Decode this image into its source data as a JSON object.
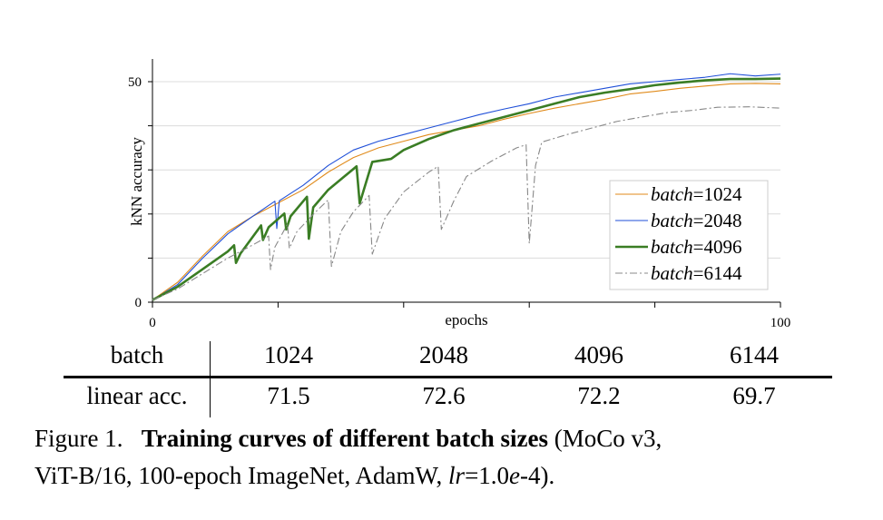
{
  "chart_data": {
    "type": "line",
    "xlabel": "epochs",
    "ylabel": "kNN accuracy",
    "xlim": [
      0,
      100
    ],
    "ylim": [
      0,
      55
    ],
    "x_ticks": [
      0,
      20,
      40,
      60,
      80,
      100
    ],
    "x_tick_labels": [
      "0",
      "100"
    ],
    "y_ticks": [
      0,
      10,
      20,
      30,
      40,
      50
    ],
    "y_tick_labels": [
      "0",
      "50"
    ],
    "grid": "horizontal",
    "legend_position": "bottom-right",
    "series": [
      {
        "name": "batch=1024",
        "name_italic": "batch",
        "name_value": "=1024",
        "color": "#e08a1a",
        "style": "solid-thin",
        "points": [
          [
            0,
            0.5
          ],
          [
            4,
            4.5
          ],
          [
            8,
            10.5
          ],
          [
            12,
            16
          ],
          [
            16,
            19.5
          ],
          [
            20,
            22.5
          ],
          [
            24,
            25.5
          ],
          [
            28,
            29.5
          ],
          [
            32,
            32.8
          ],
          [
            36,
            35
          ],
          [
            40,
            36.5
          ],
          [
            44,
            38
          ],
          [
            48,
            39
          ],
          [
            52,
            40
          ],
          [
            56,
            41.5
          ],
          [
            60,
            42.8
          ],
          [
            64,
            44
          ],
          [
            68,
            45
          ],
          [
            72,
            46
          ],
          [
            76,
            47.2
          ],
          [
            80,
            47.8
          ],
          [
            84,
            48.5
          ],
          [
            88,
            49
          ],
          [
            92,
            49.5
          ],
          [
            96,
            49.6
          ],
          [
            100,
            49.5
          ]
        ]
      },
      {
        "name": "batch=2048",
        "name_italic": "batch",
        "name_value": "=2048",
        "color": "#1f4fd8",
        "style": "solid-thin",
        "points": [
          [
            0,
            0.5
          ],
          [
            4,
            4
          ],
          [
            8,
            10
          ],
          [
            12,
            15.5
          ],
          [
            16,
            19.5
          ],
          [
            19.5,
            22.9
          ],
          [
            19.8,
            16.7
          ],
          [
            20.2,
            23
          ],
          [
            24,
            26.5
          ],
          [
            28,
            31
          ],
          [
            32,
            34.5
          ],
          [
            36,
            36.5
          ],
          [
            40,
            38
          ],
          [
            44,
            39.5
          ],
          [
            48,
            41
          ],
          [
            52,
            42.5
          ],
          [
            56,
            43.8
          ],
          [
            60,
            45
          ],
          [
            64,
            46.5
          ],
          [
            68,
            47.5
          ],
          [
            72,
            48.5
          ],
          [
            76,
            49.5
          ],
          [
            80,
            50
          ],
          [
            84,
            50.5
          ],
          [
            88,
            51
          ],
          [
            92,
            51.8
          ],
          [
            96,
            51.3
          ],
          [
            100,
            51.7
          ]
        ]
      },
      {
        "name": "batch=4096",
        "name_italic": "batch",
        "name_value": "=4096",
        "color": "#3a7d24",
        "style": "solid-thick",
        "points": [
          [
            0,
            0.5
          ],
          [
            4,
            3.5
          ],
          [
            8,
            7.5
          ],
          [
            12,
            11.5
          ],
          [
            13,
            12.9
          ],
          [
            13.3,
            8.9
          ],
          [
            14,
            11
          ],
          [
            17.3,
            17.4
          ],
          [
            17.6,
            14.1
          ],
          [
            18.5,
            17
          ],
          [
            21,
            20.1
          ],
          [
            21.3,
            16.5
          ],
          [
            22,
            19.5
          ],
          [
            24.6,
            23.9
          ],
          [
            24.9,
            14.4
          ],
          [
            25.6,
            21.5
          ],
          [
            28,
            25.5
          ],
          [
            32.5,
            30.8
          ],
          [
            33,
            22.4
          ],
          [
            35,
            31.8
          ],
          [
            38,
            32.5
          ],
          [
            40,
            34.5
          ],
          [
            44,
            37
          ],
          [
            48,
            39
          ],
          [
            52,
            40.5
          ],
          [
            56,
            42
          ],
          [
            60,
            43.5
          ],
          [
            64,
            45
          ],
          [
            68,
            46.5
          ],
          [
            72,
            47.5
          ],
          [
            76,
            48.3
          ],
          [
            80,
            49.2
          ],
          [
            84,
            49.8
          ],
          [
            88,
            50.3
          ],
          [
            92,
            50.6
          ],
          [
            96,
            50.6
          ],
          [
            100,
            50.7
          ]
        ]
      },
      {
        "name": "batch=6144",
        "name_italic": "batch",
        "name_value": "=6144",
        "color": "#888888",
        "style": "dash-dot",
        "points": [
          [
            0,
            0.5
          ],
          [
            4,
            3
          ],
          [
            8,
            6.5
          ],
          [
            12,
            10
          ],
          [
            16,
            13
          ],
          [
            18.5,
            15
          ],
          [
            18.8,
            7.4
          ],
          [
            19.5,
            12.5
          ],
          [
            21.5,
            17.7
          ],
          [
            21.8,
            12.2
          ],
          [
            23,
            16
          ],
          [
            26,
            20.5
          ],
          [
            28,
            23.2
          ],
          [
            28.5,
            8.1
          ],
          [
            30,
            16
          ],
          [
            32,
            20.5
          ],
          [
            34.5,
            24.2
          ],
          [
            35,
            10.9
          ],
          [
            37,
            19
          ],
          [
            40,
            25
          ],
          [
            44,
            29.5
          ],
          [
            45.5,
            30.8
          ],
          [
            46,
            16.5
          ],
          [
            48,
            23
          ],
          [
            50,
            28.5
          ],
          [
            54,
            32
          ],
          [
            58,
            35
          ],
          [
            59.5,
            35.7
          ],
          [
            60,
            13.3
          ],
          [
            61,
            31
          ],
          [
            62,
            36.3
          ],
          [
            66,
            38
          ],
          [
            70,
            39.5
          ],
          [
            74,
            41
          ],
          [
            78,
            42
          ],
          [
            82,
            43
          ],
          [
            86,
            43.5
          ],
          [
            90,
            44.2
          ],
          [
            95,
            44.3
          ],
          [
            100,
            44
          ]
        ]
      }
    ]
  },
  "table": {
    "header_label": "batch",
    "row_label": "linear acc.",
    "batches": [
      "1024",
      "2048",
      "4096",
      "6144"
    ],
    "values": [
      "71.5",
      "72.6",
      "72.2",
      "69.7"
    ]
  },
  "caption": {
    "prefix": "Figure 1.",
    "bold": "Training curves of different batch sizes",
    "rest_line1": "(MoCo v3,",
    "line2_a": "ViT-B/16, 100-epoch ImageNet, AdamW, ",
    "line2_lr": "lr",
    "line2_b": "=1.0",
    "line2_e": "e",
    "line2_c": "-4)."
  }
}
